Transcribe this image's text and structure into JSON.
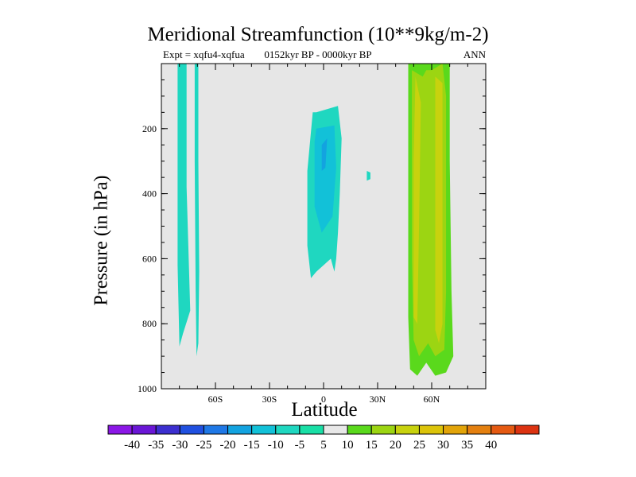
{
  "chart_data": {
    "type": "heatmap",
    "title": "Meridional Streamfunction (10**9kg/m-2)",
    "subtitle_left": "Expt = xqfu4-xqfua",
    "subtitle_center": "0152kyr BP - 0000kyr BP",
    "subtitle_right": "ANN",
    "xlabel": "Latitude",
    "ylabel": "Pressure (in hPa)",
    "xlim": [
      -90,
      90
    ],
    "ylim": [
      1000,
      0
    ],
    "x_ticks": [
      {
        "value": -60,
        "label": "60S"
      },
      {
        "value": -30,
        "label": "30S"
      },
      {
        "value": 0,
        "label": "0"
      },
      {
        "value": 30,
        "label": "30N"
      },
      {
        "value": 60,
        "label": "60N"
      }
    ],
    "y_ticks": [
      {
        "value": 200,
        "label": "200"
      },
      {
        "value": 400,
        "label": "400"
      },
      {
        "value": 600,
        "label": "600"
      },
      {
        "value": 800,
        "label": "800"
      },
      {
        "value": 1000,
        "label": "1000"
      }
    ],
    "background_color": "#e6e6e6",
    "contour_levels": [
      -40,
      -35,
      -30,
      -25,
      -20,
      -15,
      -10,
      -5,
      5,
      10,
      15,
      20,
      25,
      30,
      35,
      40
    ],
    "colorbar_colors": [
      "#8b17e6",
      "#6a16d6",
      "#3c2fcf",
      "#2050e0",
      "#1f78e6",
      "#13a3e0",
      "#12c1d8",
      "#1fd7c0",
      "#19dfa6",
      "#e8e8e8",
      "#5ad91c",
      "#9cd512",
      "#c8d20e",
      "#dcc40a",
      "#e2a409",
      "#e48010",
      "#e55a12",
      "#dc3311"
    ],
    "regions": [
      {
        "name": "sh-high-lat-band-a",
        "level": -10,
        "color": "#1fd7c0",
        "points": [
          [
            -81,
            0
          ],
          [
            -76,
            0
          ],
          [
            -76,
            380
          ],
          [
            -74,
            760
          ],
          [
            -78,
            830
          ],
          [
            -80,
            870
          ],
          [
            -81,
            620
          ]
        ]
      },
      {
        "name": "sh-high-lat-band-b",
        "level": -10,
        "color": "#1fd7c0",
        "points": [
          [
            -71.5,
            0
          ],
          [
            -69.5,
            0
          ],
          [
            -69.5,
            300
          ],
          [
            -69,
            640
          ],
          [
            -69.5,
            860
          ],
          [
            -70.5,
            900
          ],
          [
            -71,
            700
          ],
          [
            -71.5,
            300
          ]
        ]
      },
      {
        "name": "tropical-cell",
        "level": -10,
        "color": "#1fd7c0",
        "points": [
          [
            -4,
            150
          ],
          [
            8,
            130
          ],
          [
            10,
            230
          ],
          [
            9,
            400
          ],
          [
            8,
            520
          ],
          [
            7,
            600
          ],
          [
            6,
            640
          ],
          [
            4,
            600
          ],
          [
            -4,
            640
          ],
          [
            -7,
            660
          ],
          [
            -9,
            560
          ],
          [
            -9,
            330
          ],
          [
            -6,
            150
          ]
        ]
      },
      {
        "name": "tropical-cell-inner",
        "level": -15,
        "color": "#12c1d8",
        "points": [
          [
            -4,
            200
          ],
          [
            6,
            190
          ],
          [
            7,
            320
          ],
          [
            5,
            470
          ],
          [
            -1,
            520
          ],
          [
            -5,
            440
          ],
          [
            -5,
            240
          ]
        ]
      },
      {
        "name": "tropical-cell-core",
        "level": -20,
        "color": "#13a3e0",
        "points": [
          [
            -1,
            250
          ],
          [
            2,
            230
          ],
          [
            1,
            320
          ],
          [
            -1,
            330
          ]
        ]
      },
      {
        "name": "nh-subtropical-spot",
        "level": -10,
        "color": "#1fd7c0",
        "points": [
          [
            24,
            330
          ],
          [
            26,
            335
          ],
          [
            26,
            355
          ],
          [
            24,
            360
          ]
        ]
      },
      {
        "name": "nh-cell",
        "level": 5,
        "color": "#5ad91c",
        "points": [
          [
            47,
            0
          ],
          [
            56,
            0
          ],
          [
            58,
            0
          ],
          [
            70,
            0
          ],
          [
            70,
            300
          ],
          [
            71,
            700
          ],
          [
            72,
            900
          ],
          [
            68,
            950
          ],
          [
            62,
            960
          ],
          [
            57,
            920
          ],
          [
            52,
            960
          ],
          [
            48,
            940
          ],
          [
            47,
            780
          ]
        ]
      },
      {
        "name": "nh-cell-inner",
        "level": 10,
        "color": "#9cd512",
        "points": [
          [
            49,
            20
          ],
          [
            55,
            40
          ],
          [
            57,
            20
          ],
          [
            60,
            20
          ],
          [
            66,
            0
          ],
          [
            68,
            100
          ],
          [
            68,
            700
          ],
          [
            67,
            880
          ],
          [
            62,
            900
          ],
          [
            58,
            860
          ],
          [
            53,
            900
          ],
          [
            50,
            850
          ],
          [
            49,
            600
          ]
        ]
      },
      {
        "name": "nh-cell-core-a",
        "level": 15,
        "color": "#c8d20e",
        "points": [
          [
            51,
            40
          ],
          [
            54,
            120
          ],
          [
            53,
            500
          ],
          [
            52,
            800
          ],
          [
            50,
            780
          ],
          [
            50,
            300
          ]
        ]
      },
      {
        "name": "nh-cell-core-b",
        "level": 15,
        "color": "#c8d20e",
        "points": [
          [
            62,
            40
          ],
          [
            66,
            60
          ],
          [
            66,
            800
          ],
          [
            64,
            860
          ],
          [
            62,
            820
          ],
          [
            62,
            300
          ]
        ]
      }
    ]
  }
}
